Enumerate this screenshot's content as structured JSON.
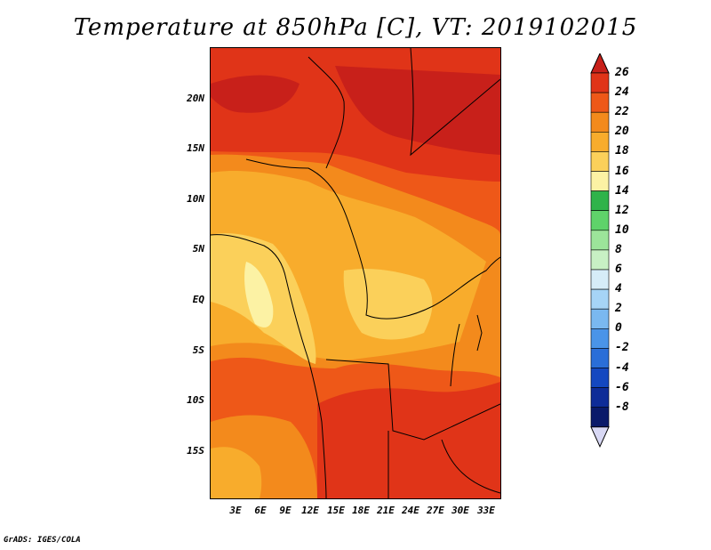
{
  "title": "Temperature at 850hPa [C], VT: 2019102015",
  "credit": "GrADS: IGES/COLA",
  "map": {
    "y_labels": [
      "20N",
      "15N",
      "10N",
      "5N",
      "EQ",
      "5S",
      "10S",
      "15S"
    ],
    "x_labels": [
      "3E",
      "6E",
      "9E",
      "12E",
      "15E",
      "18E",
      "21E",
      "24E",
      "27E",
      "30E",
      "33E"
    ]
  },
  "colorbar": {
    "labels": [
      "26",
      "24",
      "22",
      "20",
      "18",
      "16",
      "14",
      "12",
      "10",
      "8",
      "6",
      "4",
      "2",
      "0",
      "-2",
      "-4",
      "-6",
      "-8"
    ],
    "colors": [
      "#c8201a",
      "#e03418",
      "#ee5818",
      "#f38a1c",
      "#f8ac2c",
      "#fbd05a",
      "#fcf2a4",
      "#2fb34a",
      "#5fd36a",
      "#9ce49a",
      "#c8f0c4",
      "#d6ecf8",
      "#a6d4f6",
      "#7ab8f0",
      "#4a94e8",
      "#2a6ed8",
      "#1448c0",
      "#0e2c98",
      "#0a1a6a",
      "#d8d8f4"
    ]
  }
}
